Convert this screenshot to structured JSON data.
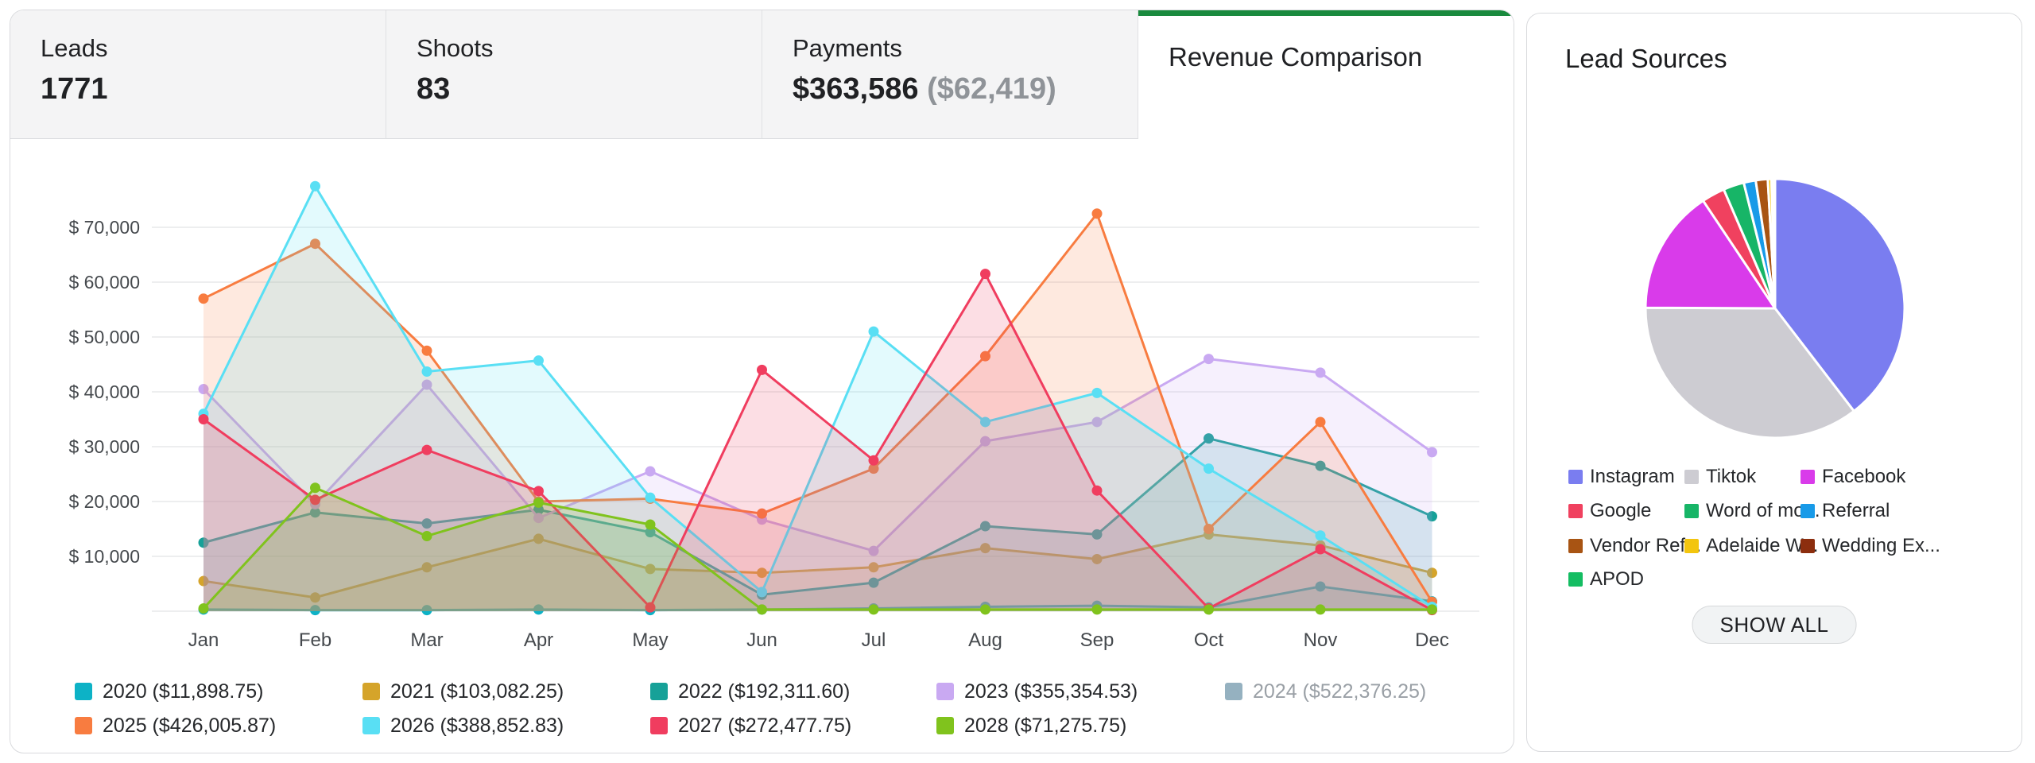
{
  "tabs": {
    "leads": {
      "label": "Leads",
      "value": "1771"
    },
    "shoots": {
      "label": "Shoots",
      "value": "83"
    },
    "payments": {
      "label": "Payments",
      "value": "$363,586",
      "secondary": "($62,419)"
    },
    "revenue_tab": {
      "label": "Revenue Comparison",
      "accent_color": "#1a8a3e"
    }
  },
  "lead_sources": {
    "title": "Lead Sources",
    "show_all_label": "SHOW ALL"
  },
  "chart_data": [
    {
      "type": "area",
      "title": "Revenue Comparison",
      "xlabel": "",
      "ylabel": "",
      "grid": true,
      "legend_position": "bottom",
      "ylim": [
        0,
        80000
      ],
      "categories": [
        "Jan",
        "Feb",
        "Mar",
        "Apr",
        "May",
        "Jun",
        "Jul",
        "Aug",
        "Sep",
        "Oct",
        "Nov",
        "Dec"
      ],
      "yticks": [
        {
          "v": 10000,
          "label": "$ 10,000"
        },
        {
          "v": 20000,
          "label": "$ 20,000"
        },
        {
          "v": 30000,
          "label": "$ 30,000"
        },
        {
          "v": 40000,
          "label": "$ 40,000"
        },
        {
          "v": 50000,
          "label": "$ 50,000"
        },
        {
          "v": 60000,
          "label": "$ 60,000"
        },
        {
          "v": 70000,
          "label": "$ 70,000"
        }
      ],
      "series": [
        {
          "name": "2020",
          "legend_label": "2020 ($11,898.75)",
          "color": "#0db2c6",
          "hidden": false,
          "values": [
            300,
            200,
            200,
            300,
            200,
            300,
            500,
            800,
            1000,
            700,
            4500,
            1800
          ]
        },
        {
          "name": "2021",
          "legend_label": "2021 ($103,082.25)",
          "color": "#d5a42a",
          "hidden": false,
          "values": [
            5500,
            2500,
            8000,
            13200,
            7700,
            7000,
            8000,
            11500,
            9500,
            14000,
            12000,
            7000
          ]
        },
        {
          "name": "2022",
          "legend_label": "2022 ($192,311.60)",
          "color": "#16a198",
          "hidden": false,
          "values": [
            12500,
            18000,
            16000,
            18500,
            14400,
            3000,
            5200,
            15500,
            14000,
            31500,
            26500,
            17300
          ]
        },
        {
          "name": "2023",
          "legend_label": "2023 ($355,354.53)",
          "color": "#c9a9f2",
          "hidden": false,
          "values": [
            40500,
            19500,
            41300,
            17000,
            25500,
            16700,
            11000,
            31000,
            34500,
            46000,
            43500,
            29000
          ]
        },
        {
          "name": "2024",
          "legend_label": "2024 ($522,376.25)",
          "color": "#95b1c0",
          "hidden": true,
          "values": []
        },
        {
          "name": "2025",
          "legend_label": "2025 ($426,005.87)",
          "color": "#f87c40",
          "hidden": false,
          "values": [
            57000,
            67000,
            47500,
            20000,
            20500,
            17800,
            26000,
            46500,
            72500,
            15000,
            34500,
            1700
          ]
        },
        {
          "name": "2026",
          "legend_label": "2026 ($388,852.83)",
          "color": "#59dff4",
          "hidden": false,
          "values": [
            36000,
            77500,
            43700,
            45700,
            20700,
            3500,
            51000,
            34500,
            39800,
            26000,
            13800,
            800
          ]
        },
        {
          "name": "2027",
          "legend_label": "2027 ($272,477.75)",
          "color": "#f03d5f",
          "hidden": false,
          "values": [
            35000,
            20300,
            29400,
            21900,
            700,
            44000,
            27500,
            61500,
            22000,
            500,
            11300,
            200
          ]
        },
        {
          "name": "2028",
          "legend_label": "2028 ($71,275.75)",
          "color": "#80c31d",
          "hidden": false,
          "values": [
            500,
            22500,
            13700,
            19800,
            15800,
            300,
            300,
            300,
            300,
            300,
            300,
            300
          ]
        }
      ]
    },
    {
      "type": "pie",
      "title": "Lead Sources",
      "legend_position": "bottom",
      "slices": [
        {
          "label": "Instagram",
          "value": 39.7,
          "color": "#7a7df0"
        },
        {
          "label": "Tiktok",
          "value": 35.6,
          "color": "#cdccd2"
        },
        {
          "label": "Facebook",
          "value": 15.6,
          "color": "#d93bea"
        },
        {
          "label": "Google",
          "value": 2.9,
          "color": "#f0415f"
        },
        {
          "label": "Word of mo...",
          "value": 2.6,
          "color": "#17b567"
        },
        {
          "label": "Referral",
          "value": 1.5,
          "color": "#189ae8"
        },
        {
          "label": "Vendor Ref...",
          "value": 1.5,
          "color": "#a85413"
        },
        {
          "label": "Adelaide W...",
          "value": 0.45,
          "color": "#f3c50e"
        },
        {
          "label": "Wedding Ex...",
          "value": 0.25,
          "color": "#8c2e0e"
        },
        {
          "label": "APOD",
          "value": 0.2,
          "color": "#14bd62"
        }
      ]
    }
  ]
}
